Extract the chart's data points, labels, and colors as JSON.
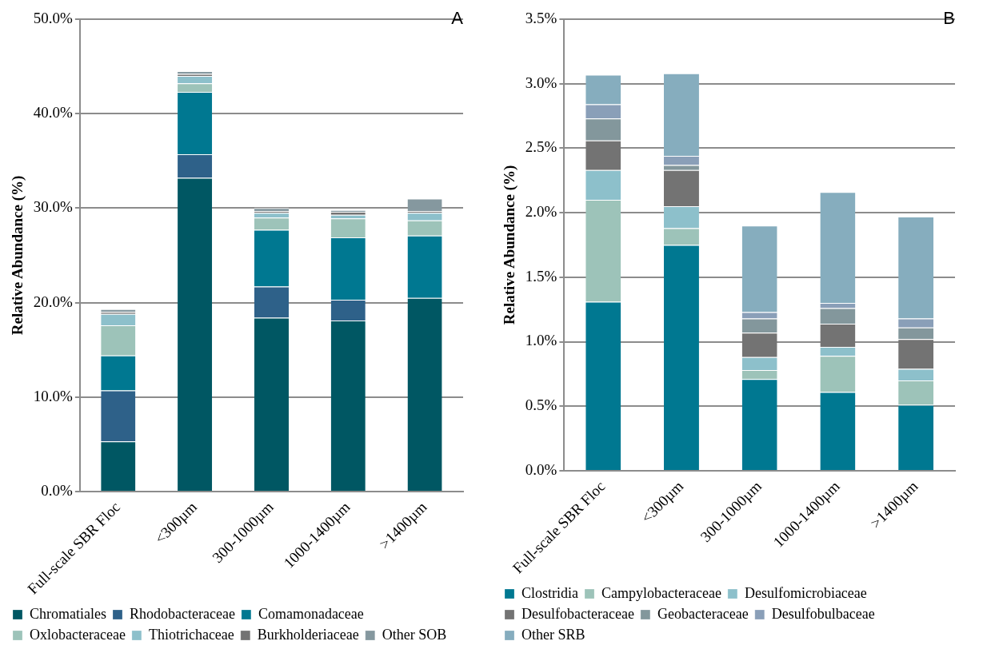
{
  "chart_data": [
    {
      "type": "bar",
      "stacked": true,
      "ylabel": "Relative Abundance (%)",
      "categories": [
        "Full-scale SBR Floc",
        "<300µm",
        "300-1000µm",
        "1000-1400µm",
        ">1400µm"
      ],
      "ylim": [
        0,
        50
      ],
      "yticks": [
        {
          "value": 0,
          "label": "0.0%"
        },
        {
          "value": 10,
          "label": "10.0%"
        },
        {
          "value": 20,
          "label": "20.0%"
        },
        {
          "value": 30,
          "label": "30.0%"
        },
        {
          "value": 40,
          "label": "40.0%"
        },
        {
          "value": 50,
          "label": "50.0%"
        }
      ],
      "grid": "y",
      "legend": "bottom",
      "annotations": [
        "A"
      ],
      "series": [
        {
          "name": "Chromatiales",
          "color": "#005763",
          "values": [
            5.3,
            33.2,
            18.4,
            18.1,
            20.5
          ]
        },
        {
          "name": "Rhodobacteraceae",
          "color": "#2e6189",
          "values": [
            5.4,
            2.5,
            3.3,
            2.2,
            0
          ]
        },
        {
          "name": "Comamonadaceae",
          "color": "#007891",
          "values": [
            3.7,
            6.6,
            6.0,
            6.6,
            6.6
          ]
        },
        {
          "name": "Oxlobacteraceae",
          "color": "#9dc3b9",
          "values": [
            3.2,
            0.9,
            1.3,
            2.0,
            1.6
          ]
        },
        {
          "name": "Thiotrichaceae",
          "color": "#8dc0cb",
          "values": [
            1.2,
            0.8,
            0.5,
            0.4,
            0.8
          ]
        },
        {
          "name": "Burkholderiaceae",
          "color": "#737373",
          "values": [
            0.2,
            0.2,
            0.2,
            0.3,
            0.2
          ]
        },
        {
          "name": "Other SOB",
          "color": "#85989f",
          "values": [
            0.3,
            0.3,
            0.3,
            0.2,
            1.3
          ]
        }
      ]
    },
    {
      "type": "bar",
      "stacked": true,
      "ylabel": "Relative Abundance (%)",
      "categories": [
        "Full-scale SBR Floc",
        "<300µm",
        "300-1000µm",
        "1000-1400µm",
        ">1400µm"
      ],
      "ylim": [
        0,
        3.5
      ],
      "yticks": [
        {
          "value": 0,
          "label": "0.0%"
        },
        {
          "value": 0.5,
          "label": "0.5%"
        },
        {
          "value": 1,
          "label": "1.0%"
        },
        {
          "value": 1.5,
          "label": "1.5%"
        },
        {
          "value": 2,
          "label": "2.0%"
        },
        {
          "value": 2.5,
          "label": "2.5%"
        },
        {
          "value": 3,
          "label": "3.0%"
        },
        {
          "value": 3.5,
          "label": "3.5%"
        }
      ],
      "grid": "y",
      "legend": "bottom",
      "annotations": [
        "B"
      ],
      "series": [
        {
          "name": "Clostridia",
          "color": "#007891",
          "values": [
            1.31,
            1.75,
            0.71,
            0.61,
            0.51
          ]
        },
        {
          "name": "Campylobacteraceae",
          "color": "#9dc3b9",
          "values": [
            0.79,
            0.13,
            0.07,
            0.28,
            0.19
          ]
        },
        {
          "name": "Desulfomicrobiaceae",
          "color": "#8dc0cb",
          "values": [
            0.23,
            0.17,
            0.1,
            0.07,
            0.09
          ]
        },
        {
          "name": "Desulfobacteraceae",
          "color": "#737373",
          "values": [
            0.23,
            0.28,
            0.19,
            0.18,
            0.23
          ]
        },
        {
          "name": "Geobacteraceae",
          "color": "#83979c",
          "values": [
            0.17,
            0.04,
            0.11,
            0.12,
            0.09
          ]
        },
        {
          "name": "Desulfobulbaceae",
          "color": "#8a9fb8",
          "values": [
            0.11,
            0.07,
            0.05,
            0.04,
            0.07
          ]
        },
        {
          "name": "Other SRB",
          "color": "#86adbe",
          "values": [
            0.23,
            0.64,
            0.67,
            0.86,
            0.79
          ]
        }
      ]
    }
  ]
}
